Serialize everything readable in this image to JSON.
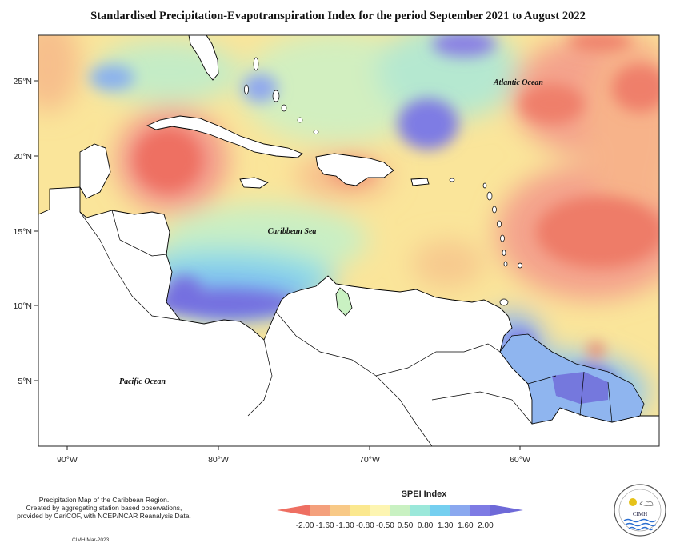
{
  "title": "Standardised Precipitation-Evapotranspiration Index for the period September 2021 to August 2022",
  "map": {
    "labels": {
      "atlantic": "Atlantic Ocean",
      "caribbean": "Caribbean Sea",
      "pacific": "Pacific Ocean"
    },
    "lat_ticks": [
      "25°N",
      "20°N",
      "15°N",
      "10°N",
      "5°N"
    ],
    "lon_ticks": [
      "90°W",
      "80°W",
      "70°W",
      "60°W"
    ]
  },
  "notes": {
    "line1": "Precipitation Map of the Caribbean Region.",
    "line2": "Created by aggregating station based observations,",
    "line3": "provided by CariCOF, with NCEP/NCAR Reanalysis Data.",
    "credit": "CIMH Mar-2023"
  },
  "legend": {
    "title": "SPEI Index",
    "labels": [
      "-2.00",
      "-1.60",
      "-1.30",
      "-0.80",
      "-0.50",
      "0.50",
      "0.80",
      "1.30",
      "1.60",
      "2.00"
    ],
    "colors": [
      "#ee6f62",
      "#f4a07c",
      "#f8c987",
      "#fbe88f",
      "#fdf5b2",
      "#c9f1c2",
      "#9be8da",
      "#75cff0",
      "#8aa8ef",
      "#7e7be4",
      "#6e69d8"
    ]
  },
  "logo": {
    "text": "CIMH"
  }
}
